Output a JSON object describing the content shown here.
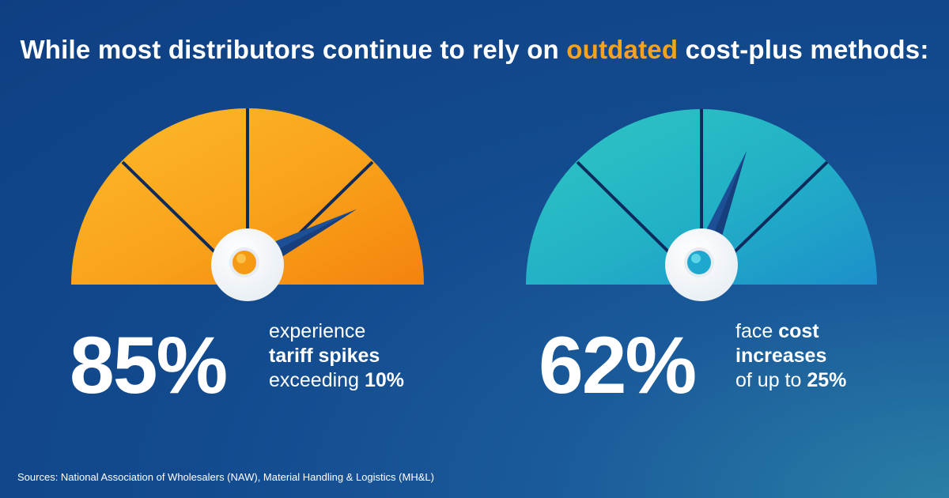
{
  "headline": {
    "before": "While most distributors continue to rely on ",
    "highlight": "outdated",
    "after": " cost-plus methods:"
  },
  "gauges": [
    {
      "value": 85,
      "value_text": "85%",
      "desc_line1": "experience",
      "desc_line2": "tariff spikes",
      "desc_line3_plain": "exceeding ",
      "desc_line3_bold": "10%",
      "color_main": "#f9a21a",
      "color_light": "#fdb92a",
      "color_dark": "#f58a0f",
      "hub_color": "#f59a12"
    },
    {
      "value": 62,
      "value_text": "62%",
      "desc_line1_plain": "face ",
      "desc_line1_bold": "cost",
      "desc_line2": "increases",
      "desc_line3_plain": "of up to ",
      "desc_line3_bold": "25%",
      "color_main": "#23b5c4",
      "color_light": "#2cc3c6",
      "color_dark": "#1e97c9",
      "hub_color": "#1fa8cf"
    }
  ],
  "footer": {
    "sources": "Sources: National Association of Wholesalers (NAW), Material Handling & Logistics (MH&L)"
  },
  "colors": {
    "background": "#134b8f",
    "accent": "#f7a21b",
    "needle": "#1d4f96",
    "divider": "#0d2a5c"
  }
}
